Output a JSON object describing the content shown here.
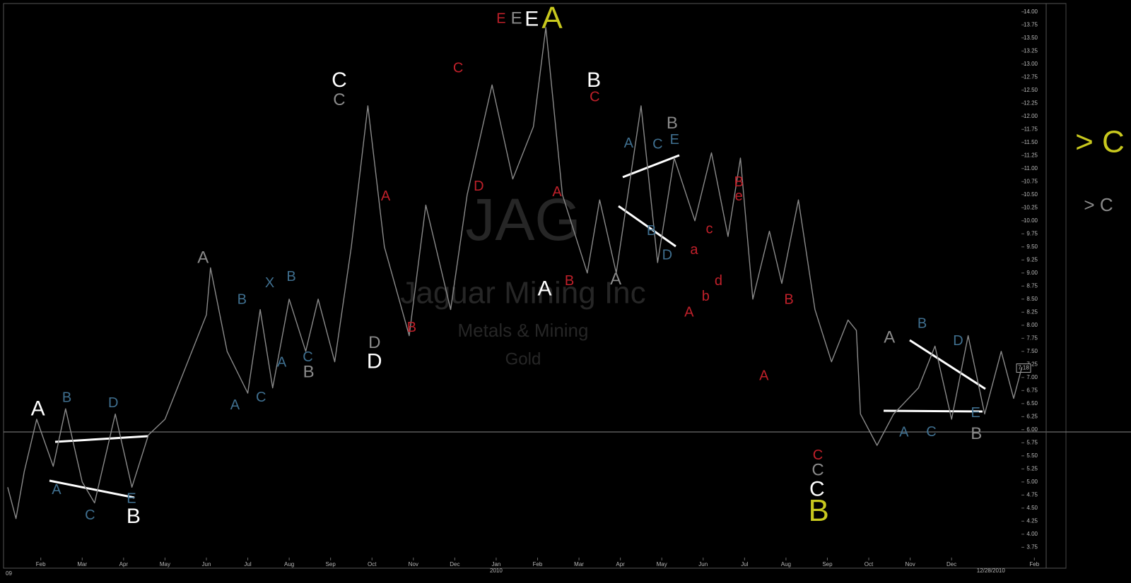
{
  "chart_data": {
    "type": "line",
    "watermark": {
      "symbol": "JAG",
      "company": "Jaguar Mining Inc",
      "sector": "Metals & Mining",
      "industry": "Gold"
    },
    "xlim": [
      0.1,
      25.2
    ],
    "xticks": [
      {
        "value": 1,
        "label": "Feb"
      },
      {
        "value": 2,
        "label": "Mar"
      },
      {
        "value": 3,
        "label": "Apr"
      },
      {
        "value": 4,
        "label": "May"
      },
      {
        "value": 5,
        "label": "Jun"
      },
      {
        "value": 6,
        "label": "Jul"
      },
      {
        "value": 7,
        "label": "Aug"
      },
      {
        "value": 8,
        "label": "Sep"
      },
      {
        "value": 9,
        "label": "Oct"
      },
      {
        "value": 10,
        "label": "Nov"
      },
      {
        "value": 11,
        "label": "Dec"
      },
      {
        "value": 12,
        "label": "Jan"
      },
      {
        "value": 13,
        "label": "Feb"
      },
      {
        "value": 14,
        "label": "Mar"
      },
      {
        "value": 15,
        "label": "Apr"
      },
      {
        "value": 16,
        "label": "May"
      },
      {
        "value": 17,
        "label": "Jun"
      },
      {
        "value": 18,
        "label": "Jul"
      },
      {
        "value": 19,
        "label": "Aug"
      },
      {
        "value": 20,
        "label": "Sep"
      },
      {
        "value": 21,
        "label": "Oct"
      },
      {
        "value": 22,
        "label": "Nov"
      },
      {
        "value": 23,
        "label": "Dec"
      },
      {
        "value": 25,
        "label": "Feb"
      }
    ],
    "year_label": {
      "value": 12,
      "label": "2010"
    },
    "start_label": "09",
    "date_label": {
      "value": 23.95,
      "label": "12/28/2010"
    },
    "ylim": [
      3.62,
      14.05
    ],
    "yticks": [
      {
        "value": 3.75,
        "label": "3.75"
      },
      {
        "value": 4,
        "label": "4.00"
      },
      {
        "value": 4.25,
        "label": "4.25"
      },
      {
        "value": 4.5,
        "label": "4.50"
      },
      {
        "value": 4.75,
        "label": "4.75"
      },
      {
        "value": 5,
        "label": "5.00"
      },
      {
        "value": 5.25,
        "label": "5.25"
      },
      {
        "value": 5.5,
        "label": "5.50"
      },
      {
        "value": 5.75,
        "label": "5.75"
      },
      {
        "value": 6,
        "label": "6.00"
      },
      {
        "value": 6.25,
        "label": "6.25"
      },
      {
        "value": 6.5,
        "label": "6.50"
      },
      {
        "value": 6.75,
        "label": "6.75"
      },
      {
        "value": 7,
        "label": "7.00"
      },
      {
        "value": 7.25,
        "label": "7.25"
      },
      {
        "value": 7.5,
        "label": "7.50"
      },
      {
        "value": 7.75,
        "label": "7.75"
      },
      {
        "value": 8,
        "label": "8.00"
      },
      {
        "value": 8.25,
        "label": "8.25"
      },
      {
        "value": 8.5,
        "label": "8.50"
      },
      {
        "value": 8.75,
        "label": "8.75"
      },
      {
        "value": 9,
        "label": "9.00"
      },
      {
        "value": 9.25,
        "label": "9.25"
      },
      {
        "value": 9.5,
        "label": "9.50"
      },
      {
        "value": 9.75,
        "label": "9.75"
      },
      {
        "value": 10,
        "label": "10.00"
      },
      {
        "value": 10.25,
        "label": "10.25"
      },
      {
        "value": 10.5,
        "label": "10.50"
      },
      {
        "value": 10.75,
        "label": "10.75"
      },
      {
        "value": 11,
        "label": "11.00"
      },
      {
        "value": 11.25,
        "label": "11.25"
      },
      {
        "value": 11.5,
        "label": "11.50"
      },
      {
        "value": 11.75,
        "label": "11.75"
      },
      {
        "value": 12,
        "label": "12.00"
      },
      {
        "value": 12.25,
        "label": "12.25"
      },
      {
        "value": 12.5,
        "label": "12.50"
      },
      {
        "value": 12.75,
        "label": "12.75"
      },
      {
        "value": 13,
        "label": "13.00"
      },
      {
        "value": 13.25,
        "label": "13.25"
      },
      {
        "value": 13.5,
        "label": "13.50"
      },
      {
        "value": 13.75,
        "label": "13.75"
      },
      {
        "value": 14,
        "label": "14.00"
      }
    ],
    "last_price": 7.18,
    "series": [
      {
        "color": "#8a8a8a",
        "x": [
          0.2,
          0.4,
          0.6,
          0.9,
          1.3,
          1.6,
          2.0,
          2.3,
          2.8,
          3.2,
          3.6,
          4.0,
          4.5,
          5.0,
          5.1,
          5.5,
          6.0,
          6.3,
          6.6,
          7.0,
          7.4,
          7.7,
          8.1,
          8.5,
          8.9,
          9.3,
          9.9,
          10.3,
          10.9,
          11.3,
          11.9,
          12.4,
          12.9,
          13.2,
          13.6,
          14.2,
          14.5,
          14.9,
          15.5,
          15.9,
          16.3,
          16.8,
          17.2,
          17.6,
          17.9,
          18.2,
          18.6,
          18.9,
          19.3,
          19.7,
          20.1,
          20.5,
          20.7,
          20.8,
          21.2,
          21.6,
          22.2,
          22.6,
          23.0,
          23.4,
          23.8,
          24.2,
          24.5,
          24.7
        ],
        "values": [
          4.9,
          4.3,
          5.2,
          6.2,
          5.3,
          6.4,
          5.0,
          4.6,
          6.3,
          4.9,
          5.9,
          6.2,
          7.2,
          8.2,
          9.1,
          7.5,
          6.7,
          8.3,
          6.8,
          8.5,
          7.5,
          8.5,
          7.3,
          9.5,
          12.2,
          9.5,
          7.8,
          10.3,
          8.3,
          10.5,
          12.6,
          10.8,
          11.8,
          13.7,
          10.5,
          9.0,
          10.4,
          9.0,
          12.2,
          9.2,
          11.2,
          10.0,
          11.3,
          9.7,
          11.2,
          8.5,
          9.8,
          8.8,
          10.4,
          8.3,
          7.3,
          8.1,
          7.9,
          6.3,
          5.7,
          6.3,
          6.8,
          7.6,
          6.2,
          7.8,
          6.3,
          7.5,
          6.6,
          7.2
        ]
      }
    ],
    "annotations": [
      {
        "text": "E",
        "x": 12.12,
        "y": 13.86,
        "color": "#c0202a"
      },
      {
        "text": "E",
        "x": 12.49,
        "y": 13.86,
        "color": "#8a8a8a"
      },
      {
        "text": "E",
        "x": 12.86,
        "y": 13.84,
        "color": "#ffffff"
      },
      {
        "text": "A",
        "x": 13.35,
        "y": 13.84,
        "color": "#c8c81e"
      },
      {
        "text": "C",
        "x": 8.21,
        "y": 12.67,
        "color": "#ffffff"
      },
      {
        "text": "C",
        "x": 8.21,
        "y": 12.3,
        "color": "#8a8a8a"
      },
      {
        "text": "B",
        "x": 14.36,
        "y": 12.67,
        "color": "#ffffff"
      },
      {
        "text": "C",
        "x": 14.38,
        "y": 12.36,
        "color": "#c0202a"
      },
      {
        "text": "C",
        "x": 11.08,
        "y": 12.91,
        "color": "#c0202a"
      },
      {
        "text": "D",
        "x": 11.58,
        "y": 10.65,
        "color": "#c0202a"
      },
      {
        "text": "A",
        "x": 9.33,
        "y": 10.46,
        "color": "#c0202a"
      },
      {
        "text": "B",
        "x": 9.96,
        "y": 7.95,
        "color": "#c0202a"
      },
      {
        "text": "A",
        "x": 4.92,
        "y": 9.28,
        "color": "#8a8a8a"
      },
      {
        "text": "B",
        "x": 5.86,
        "y": 8.48,
        "color": "#3f6f8f"
      },
      {
        "text": "X",
        "x": 6.53,
        "y": 8.8,
        "color": "#3f6f8f"
      },
      {
        "text": "B",
        "x": 7.05,
        "y": 8.92,
        "color": "#3f6f8f"
      },
      {
        "text": "A",
        "x": 6.82,
        "y": 7.28,
        "color": "#3f6f8f"
      },
      {
        "text": "C",
        "x": 7.45,
        "y": 7.38,
        "color": "#3f6f8f"
      },
      {
        "text": "B",
        "x": 7.47,
        "y": 7.09,
        "color": "#8a8a8a"
      },
      {
        "text": "A",
        "x": 5.69,
        "y": 6.46,
        "color": "#3f6f8f"
      },
      {
        "text": "C",
        "x": 6.32,
        "y": 6.61,
        "color": "#3f6f8f"
      },
      {
        "text": "D",
        "x": 9.06,
        "y": 7.65,
        "color": "#8a8a8a"
      },
      {
        "text": "D",
        "x": 9.06,
        "y": 7.29,
        "color": "#ffffff"
      },
      {
        "text": "A",
        "x": 13.17,
        "y": 8.68,
        "color": "#ffffff"
      },
      {
        "text": "A",
        "x": 13.47,
        "y": 10.54,
        "color": "#c0202a"
      },
      {
        "text": "B",
        "x": 13.77,
        "y": 8.84,
        "color": "#c0202a"
      },
      {
        "text": "A",
        "x": 14.89,
        "y": 8.87,
        "color": "#8a8a8a"
      },
      {
        "text": "B",
        "x": 16.25,
        "y": 11.85,
        "color": "#8a8a8a"
      },
      {
        "text": "A",
        "x": 15.2,
        "y": 11.47,
        "color": "#3f6f8f"
      },
      {
        "text": "C",
        "x": 15.9,
        "y": 11.45,
        "color": "#3f6f8f"
      },
      {
        "text": "E",
        "x": 16.31,
        "y": 11.54,
        "color": "#3f6f8f"
      },
      {
        "text": "B",
        "x": 15.75,
        "y": 9.8,
        "color": "#3f6f8f"
      },
      {
        "text": "D",
        "x": 16.13,
        "y": 9.33,
        "color": "#3f6f8f"
      },
      {
        "text": "B",
        "x": 17.86,
        "y": 10.73,
        "color": "#c0202a"
      },
      {
        "text": "e",
        "x": 17.86,
        "y": 10.46,
        "color": "#c0202a"
      },
      {
        "text": "c",
        "x": 17.15,
        "y": 9.83,
        "color": "#c0202a"
      },
      {
        "text": "a",
        "x": 16.78,
        "y": 9.43,
        "color": "#c0202a"
      },
      {
        "text": "b",
        "x": 17.06,
        "y": 8.54,
        "color": "#c0202a"
      },
      {
        "text": "d",
        "x": 17.37,
        "y": 8.84,
        "color": "#c0202a"
      },
      {
        "text": "A",
        "x": 16.66,
        "y": 8.24,
        "color": "#c0202a"
      },
      {
        "text": "B",
        "x": 19.07,
        "y": 8.48,
        "color": "#c0202a"
      },
      {
        "text": "A",
        "x": 18.47,
        "y": 7.02,
        "color": "#c0202a"
      },
      {
        "text": "C",
        "x": 19.77,
        "y": 5.5,
        "color": "#c0202a"
      },
      {
        "text": "C",
        "x": 19.77,
        "y": 5.21,
        "color": "#8a8a8a"
      },
      {
        "text": "C",
        "x": 19.75,
        "y": 4.84,
        "color": "#ffffff"
      },
      {
        "text": "B",
        "x": 19.79,
        "y": 4.41,
        "color": "#c8c81e"
      },
      {
        "text": "A",
        "x": 21.5,
        "y": 7.75,
        "color": "#8a8a8a"
      },
      {
        "text": "B",
        "x": 22.29,
        "y": 8.02,
        "color": "#3f6f8f"
      },
      {
        "text": "D",
        "x": 23.16,
        "y": 7.69,
        "color": "#3f6f8f"
      },
      {
        "text": "A",
        "x": 21.85,
        "y": 5.94,
        "color": "#3f6f8f"
      },
      {
        "text": "C",
        "x": 22.51,
        "y": 5.95,
        "color": "#3f6f8f"
      },
      {
        "text": "E",
        "x": 23.58,
        "y": 6.31,
        "color": "#3f6f8f"
      },
      {
        "text": "B",
        "x": 23.6,
        "y": 5.91,
        "color": "#8a8a8a"
      },
      {
        "text": "A",
        "x": 0.93,
        "y": 6.38,
        "color": "#ffffff"
      },
      {
        "text": "B",
        "x": 1.63,
        "y": 6.6,
        "color": "#3f6f8f"
      },
      {
        "text": "D",
        "x": 2.75,
        "y": 6.5,
        "color": "#3f6f8f"
      },
      {
        "text": "A",
        "x": 1.38,
        "y": 4.84,
        "color": "#3f6f8f"
      },
      {
        "text": "C",
        "x": 2.19,
        "y": 4.35,
        "color": "#3f6f8f"
      },
      {
        "text": "E",
        "x": 3.19,
        "y": 4.67,
        "color": "#3f6f8f"
      },
      {
        "text": "B",
        "x": 3.24,
        "y": 4.32,
        "color": "#ffffff"
      }
    ],
    "side_labels": [
      {
        "text": "> C",
        "color": "#c8c81e"
      },
      {
        "text": "> C",
        "color": "#8a8a8a"
      }
    ]
  }
}
